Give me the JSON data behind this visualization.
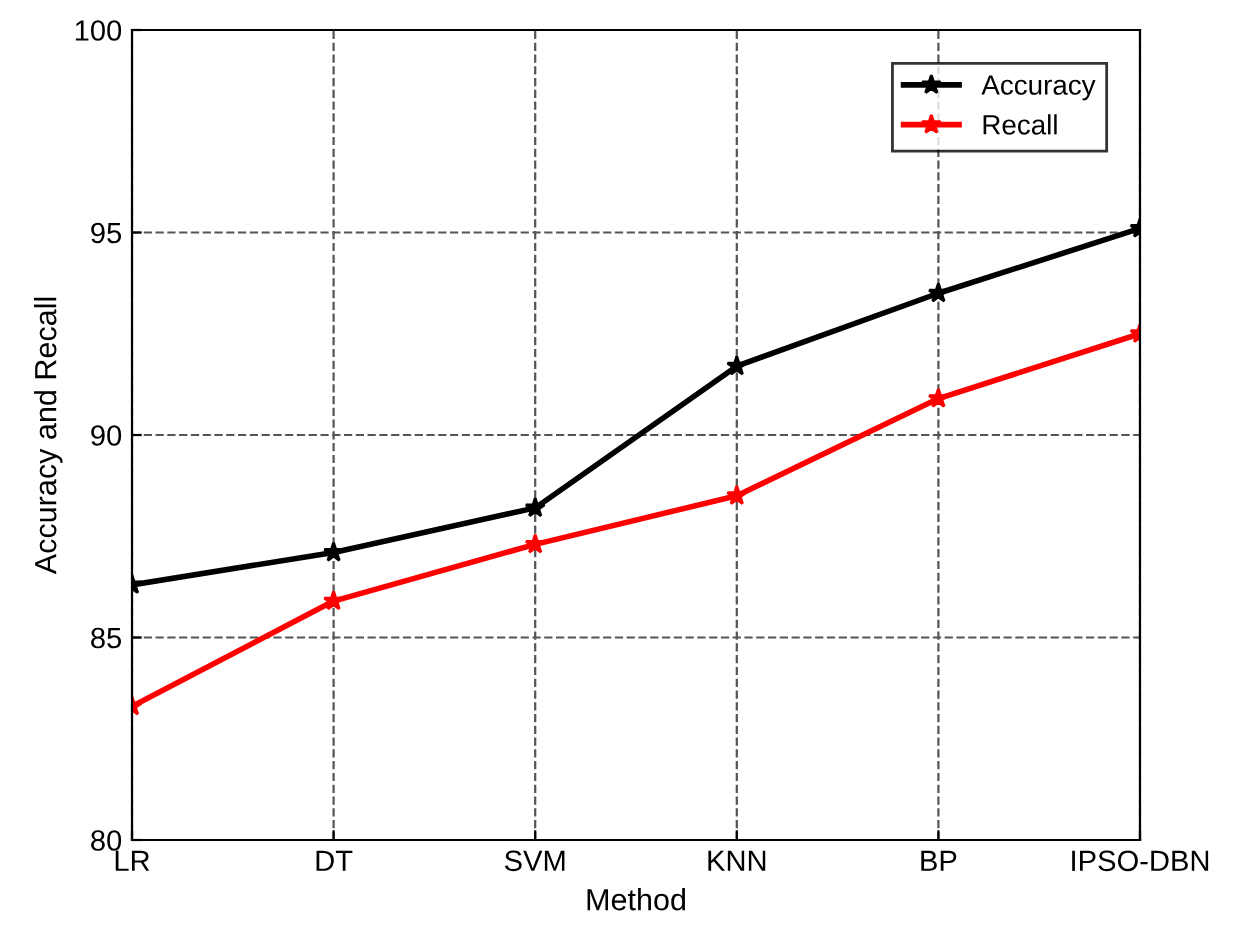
{
  "chart_data": {
    "type": "line",
    "xlabel": "Method",
    "ylabel": "Accuracy and Recall",
    "categories": [
      "LR",
      "DT",
      "SVM",
      "KNN",
      "BP",
      "IPSO-DBN"
    ],
    "series": [
      {
        "name": "Accuracy",
        "color": "#000000",
        "values": [
          86.3,
          87.1,
          88.2,
          91.7,
          93.5,
          95.1
        ]
      },
      {
        "name": "Recall",
        "color": "#ff0000",
        "values": [
          83.3,
          85.9,
          87.3,
          88.5,
          90.9,
          92.5
        ]
      }
    ],
    "ylim": [
      80,
      100
    ],
    "yticks": [
      80,
      85,
      90,
      95,
      100
    ],
    "grid": true,
    "legend": "top right",
    "marker": "star",
    "line_style": "solid"
  }
}
